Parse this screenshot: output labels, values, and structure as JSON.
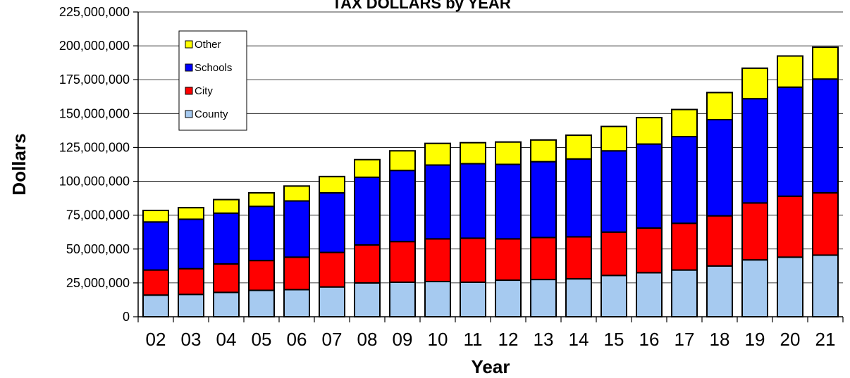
{
  "chart_data": {
    "type": "bar",
    "stacked": true,
    "title": "TAX DOLLARS by YEAR",
    "xlabel": "Year",
    "ylabel": "Dollars",
    "ylim": [
      0,
      225000000
    ],
    "yticks": [
      "0",
      "25,000,000",
      "50,000,000",
      "75,000,000",
      "100,000,000",
      "125,000,000",
      "150,000,000",
      "175,000,000",
      "200,000,000",
      "225,000,000"
    ],
    "ytick_values": [
      0,
      25000000,
      50000000,
      75000000,
      100000000,
      125000000,
      150000000,
      175000000,
      200000000,
      225000000
    ],
    "grid": true,
    "legend_position": "top-left",
    "categories": [
      "02",
      "03",
      "04",
      "05",
      "06",
      "07",
      "08",
      "09",
      "10",
      "11",
      "12",
      "13",
      "14",
      "15",
      "16",
      "17",
      "18",
      "19",
      "20",
      "21"
    ],
    "series": [
      {
        "name": "County",
        "color": "#a6caf0",
        "values": [
          16000000,
          16500000,
          18000000,
          19500000,
          20000000,
          22000000,
          25000000,
          25500000,
          26000000,
          25500000,
          27000000,
          27500000,
          28000000,
          30500000,
          32500000,
          34500000,
          37500000,
          42000000,
          44000000,
          45500000
        ]
      },
      {
        "name": "City",
        "color": "#ff0000",
        "values": [
          18500000,
          19000000,
          21000000,
          22000000,
          24000000,
          25500000,
          28000000,
          30000000,
          31500000,
          32500000,
          30500000,
          31000000,
          31000000,
          32000000,
          33000000,
          34500000,
          37000000,
          42000000,
          45000000,
          46000000
        ]
      },
      {
        "name": "Schools",
        "color": "#0000ff",
        "values": [
          35500000,
          36500000,
          37500000,
          40000000,
          41500000,
          44000000,
          50000000,
          52500000,
          54500000,
          55000000,
          55000000,
          56000000,
          57500000,
          60000000,
          62000000,
          64000000,
          71000000,
          77000000,
          80500000,
          84000000
        ]
      },
      {
        "name": "Other",
        "color": "#ffff00",
        "values": [
          8500000,
          8500000,
          10000000,
          10000000,
          11000000,
          12000000,
          13000000,
          14500000,
          16000000,
          15500000,
          16500000,
          16000000,
          17500000,
          18000000,
          19500000,
          20000000,
          20000000,
          22500000,
          23000000,
          23500000
        ]
      }
    ],
    "legend_order": [
      "Other",
      "Schools",
      "City",
      "County"
    ]
  }
}
